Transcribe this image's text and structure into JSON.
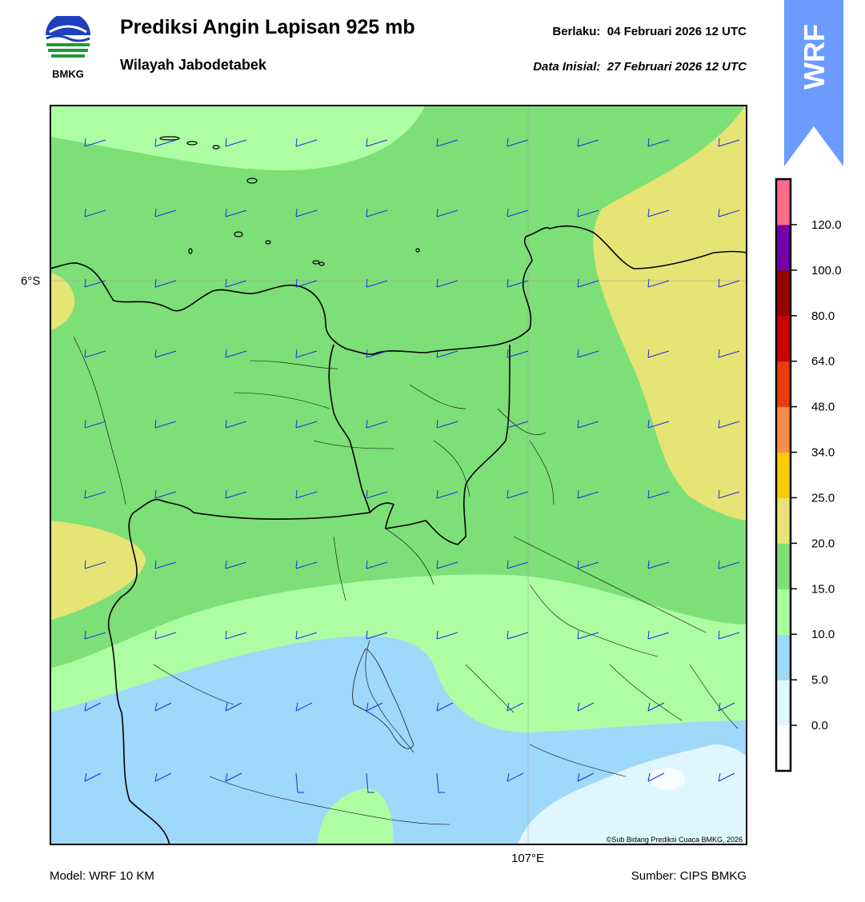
{
  "header": {
    "title": "Prediksi Angin Lapisan 925 mb",
    "subtitle": "Wilayah Jabodetabek",
    "valid_label": "Berlaku:",
    "valid_value": "04 Februari 2026 12 UTC",
    "init_label": "Data Inisial:",
    "init_value": "27 Februari 2026 12 UTC"
  },
  "logo": {
    "text": "BMKG",
    "icon": "bmkg-logo-icon"
  },
  "badge": {
    "text": "WRF",
    "color": "#6b9bff"
  },
  "map": {
    "lat_label": "6°S",
    "lon_label": "107°E",
    "copyright": "©Sub Bidang Prediksi Cuaca BMKG, 2026"
  },
  "footer": {
    "model": "Model: WRF 10 KM",
    "source": "Sumber: CIPS BMKG"
  },
  "colorbar": {
    "ticks": [
      "0.0",
      "5.0",
      "10.0",
      "15.0",
      "20.0",
      "25.0",
      "34.0",
      "48.0",
      "64.0",
      "80.0",
      "100.0",
      "120.0"
    ],
    "colors": [
      "#ffffff",
      "#e0f6ff",
      "#9ed8fb",
      "#adfea3",
      "#7ddf77",
      "#e5e474",
      "#fccc00",
      "#fb8b4b",
      "#ea3b0b",
      "#cc0000",
      "#990000",
      "#7300a9",
      "#ff6c89"
    ]
  }
}
